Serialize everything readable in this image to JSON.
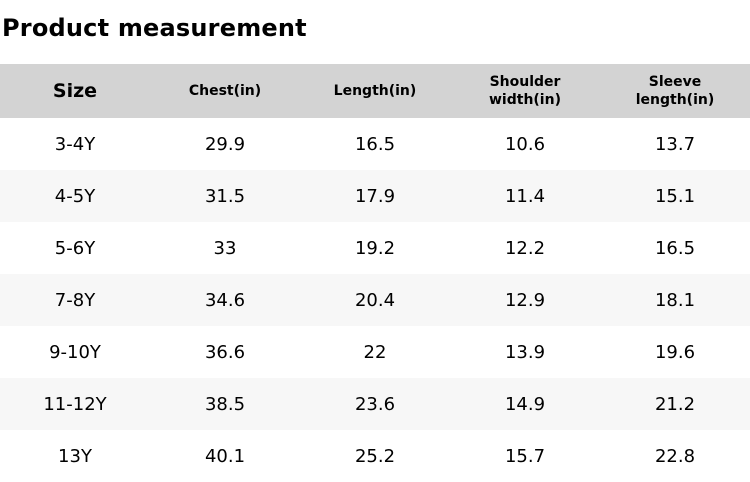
{
  "page": {
    "title": "Product measurement"
  },
  "table": {
    "headers": [
      "Size",
      "Chest(in)",
      "Length(in)",
      "Shoulder width(in)",
      "Sleeve length(in)"
    ],
    "rows": [
      {
        "cells": [
          "3-4Y",
          "29.9",
          "16.5",
          "10.6",
          "13.7"
        ]
      },
      {
        "cells": [
          "4-5Y",
          "31.5",
          "17.9",
          "11.4",
          "15.1"
        ]
      },
      {
        "cells": [
          "5-6Y",
          "33",
          "19.2",
          "12.2",
          "16.5"
        ]
      },
      {
        "cells": [
          "7-8Y",
          "34.6",
          "20.4",
          "12.9",
          "18.1"
        ]
      },
      {
        "cells": [
          "9-10Y",
          "36.6",
          "22",
          "13.9",
          "19.6"
        ]
      },
      {
        "cells": [
          "11-12Y",
          "38.5",
          "23.6",
          "14.9",
          "21.2"
        ]
      },
      {
        "cells": [
          "13Y",
          "40.1",
          "25.2",
          "15.7",
          "22.8"
        ]
      }
    ]
  },
  "colors": {
    "header_bg": "#d3d3d3",
    "alt_row_bg": "#f7f7f7",
    "text": "#000000",
    "page_bg": "#ffffff"
  }
}
